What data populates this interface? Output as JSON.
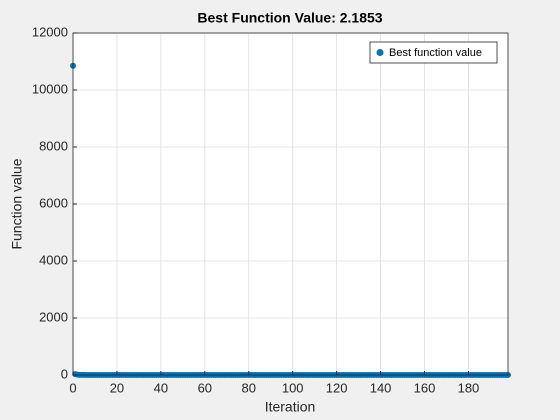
{
  "chart_data": {
    "type": "scatter",
    "title": "Best Function Value: 2.1853",
    "xlabel": "Iteration",
    "ylabel": "Function value",
    "series": [
      {
        "name": "Best function value",
        "color": "#0072bd",
        "x": [
          0,
          1,
          2,
          3,
          4,
          5,
          6,
          7,
          8,
          9,
          10,
          11,
          12,
          13,
          14,
          15,
          16,
          17,
          18,
          19,
          20,
          21,
          22,
          23,
          24,
          25,
          26,
          27,
          28,
          29,
          30,
          31,
          32,
          33,
          34,
          35,
          36,
          37,
          38,
          39,
          40,
          41,
          42,
          43,
          44,
          45,
          46,
          47,
          48,
          49,
          50,
          51,
          52,
          53,
          54,
          55,
          56,
          57,
          58,
          59,
          60,
          61,
          62,
          63,
          64,
          65,
          66,
          67,
          68,
          69,
          70,
          71,
          72,
          73,
          74,
          75,
          76,
          77,
          78,
          79,
          80,
          81,
          82,
          83,
          84,
          85,
          86,
          87,
          88,
          89,
          90,
          91,
          92,
          93,
          94,
          95,
          96,
          97,
          98,
          99,
          100,
          101,
          102,
          103,
          104,
          105,
          106,
          107,
          108,
          109,
          110,
          111,
          112,
          113,
          114,
          115,
          116,
          117,
          118,
          119,
          120,
          121,
          122,
          123,
          124,
          125,
          126,
          127,
          128,
          129,
          130,
          131,
          132,
          133,
          134,
          135,
          136,
          137,
          138,
          139,
          140,
          141,
          142,
          143,
          144,
          145,
          146,
          147,
          148,
          149,
          150,
          151,
          152,
          153,
          154,
          155,
          156,
          157,
          158,
          159,
          160,
          161,
          162,
          163,
          164,
          165,
          166,
          167,
          168,
          169,
          170,
          171,
          172,
          173,
          174,
          175,
          176,
          177,
          178,
          179,
          180,
          181,
          182,
          183,
          184,
          185,
          186,
          187,
          188,
          189,
          190,
          191,
          192,
          193,
          194,
          195,
          196,
          197,
          198
        ],
        "values": [
          10850,
          30,
          12,
          6,
          4,
          3,
          2.1853,
          2.1853,
          2.1853,
          2.1853,
          2.1853,
          2.1853,
          2.1853,
          2.1853,
          2.1853,
          2.1853,
          2.1853,
          2.1853,
          2.1853,
          2.1853,
          2.1853,
          2.1853,
          2.1853,
          2.1853,
          2.1853,
          2.1853,
          2.1853,
          2.1853,
          2.1853,
          2.1853,
          2.1853,
          2.1853,
          2.1853,
          2.1853,
          2.1853,
          2.1853,
          2.1853,
          2.1853,
          2.1853,
          2.1853,
          2.1853,
          2.1853,
          2.1853,
          2.1853,
          2.1853,
          2.1853,
          2.1853,
          2.1853,
          2.1853,
          2.1853,
          2.1853,
          2.1853,
          2.1853,
          2.1853,
          2.1853,
          2.1853,
          2.1853,
          2.1853,
          2.1853,
          2.1853,
          2.1853,
          2.1853,
          2.1853,
          2.1853,
          2.1853,
          2.1853,
          2.1853,
          2.1853,
          2.1853,
          2.1853,
          2.1853,
          2.1853,
          2.1853,
          2.1853,
          2.1853,
          2.1853,
          2.1853,
          2.1853,
          2.1853,
          2.1853,
          2.1853,
          2.1853,
          2.1853,
          2.1853,
          2.1853,
          2.1853,
          2.1853,
          2.1853,
          2.1853,
          2.1853,
          2.1853,
          2.1853,
          2.1853,
          2.1853,
          2.1853,
          2.1853,
          2.1853,
          2.1853,
          2.1853,
          2.1853,
          2.1853,
          2.1853,
          2.1853,
          2.1853,
          2.1853,
          2.1853,
          2.1853,
          2.1853,
          2.1853,
          2.1853,
          2.1853,
          2.1853,
          2.1853,
          2.1853,
          2.1853,
          2.1853,
          2.1853,
          2.1853,
          2.1853,
          2.1853,
          2.1853,
          2.1853,
          2.1853,
          2.1853,
          2.1853,
          2.1853,
          2.1853,
          2.1853,
          2.1853,
          2.1853,
          2.1853,
          2.1853,
          2.1853,
          2.1853,
          2.1853,
          2.1853,
          2.1853,
          2.1853,
          2.1853,
          2.1853,
          2.1853,
          2.1853,
          2.1853,
          2.1853,
          2.1853,
          2.1853,
          2.1853,
          2.1853,
          2.1853,
          2.1853,
          2.1853,
          2.1853,
          2.1853,
          2.1853,
          2.1853,
          2.1853,
          2.1853,
          2.1853,
          2.1853,
          2.1853,
          2.1853,
          2.1853,
          2.1853,
          2.1853,
          2.1853,
          2.1853,
          2.1853,
          2.1853,
          2.1853,
          2.1853,
          2.1853,
          2.1853,
          2.1853,
          2.1853,
          2.1853,
          2.1853,
          2.1853,
          2.1853,
          2.1853,
          2.1853,
          2.1853,
          2.1853,
          2.1853,
          2.1853,
          2.1853,
          2.1853,
          2.1853,
          2.1853,
          2.1853,
          2.1853,
          2.1853,
          2.1853,
          2.1853,
          2.1853,
          2.1853,
          2.1853,
          2.1853,
          2.1853,
          2.1853
        ]
      }
    ],
    "xlim": [
      0,
      198
    ],
    "xticks": [
      0,
      20,
      40,
      60,
      80,
      100,
      120,
      140,
      160,
      180
    ],
    "ylim": [
      0,
      12000
    ],
    "yticks": [
      0,
      2000,
      4000,
      6000,
      8000,
      10000,
      12000
    ],
    "grid": true,
    "legend": "top-right"
  }
}
